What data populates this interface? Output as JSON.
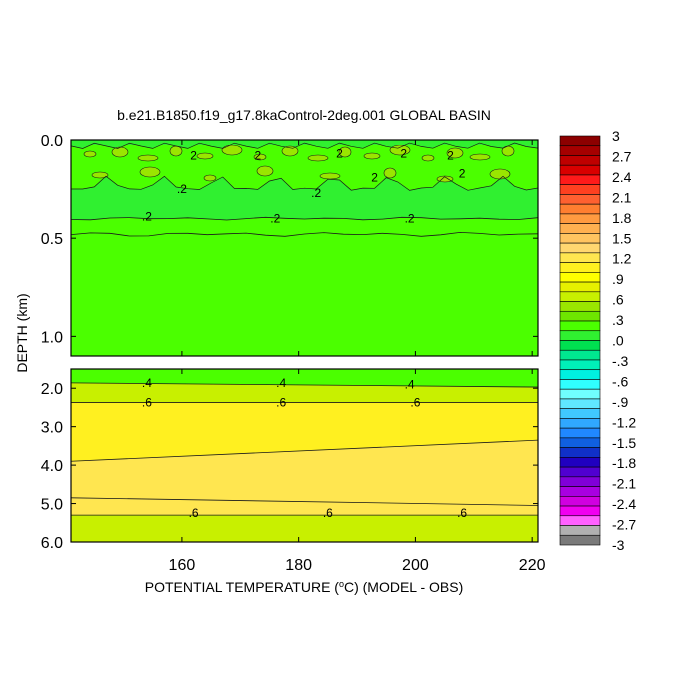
{
  "chart_data": {
    "type": "contour",
    "title": "b.e21.B1850.f19_g17.8kaControl-2deg.001 GLOBAL BASIN",
    "xlabel_main": "POTENTIAL TEMPERATURE (",
    "xlabel_degree": "o",
    "xlabel_tail": "C) (MODEL - OBS)",
    "ylabel": "DEPTH (km)",
    "x_range": [
      141,
      221
    ],
    "x_ticks": [
      {
        "value": 160,
        "label": "160"
      },
      {
        "value": 180,
        "label": "180"
      },
      {
        "value": 200,
        "label": "200"
      },
      {
        "value": 220,
        "label": "220"
      }
    ],
    "upper_panel": {
      "y_range": [
        0.0,
        1.1
      ],
      "y_ticks": [
        {
          "value": 0.0,
          "label": "0.0"
        },
        {
          "value": 0.5,
          "label": "0.5"
        },
        {
          "value": 1.0,
          "label": "1.0"
        }
      ],
      "contour_labels": [
        {
          "x": 162,
          "y": 0.08,
          "text": "2"
        },
        {
          "x": 173,
          "y": 0.08,
          "text": "2"
        },
        {
          "x": 187,
          "y": 0.07,
          "text": "2"
        },
        {
          "x": 198,
          "y": 0.07,
          "text": "2"
        },
        {
          "x": 206,
          "y": 0.08,
          "text": "2"
        },
        {
          "x": 193,
          "y": 0.19,
          "text": "2"
        },
        {
          "x": 208,
          "y": 0.17,
          "text": "2"
        },
        {
          "x": 160,
          "y": 0.25,
          "text": ".2"
        },
        {
          "x": 183,
          "y": 0.27,
          "text": ".2"
        },
        {
          "x": 154,
          "y": 0.39,
          "text": ".2"
        },
        {
          "x": 176,
          "y": 0.4,
          "text": ".2"
        },
        {
          "x": 199,
          "y": 0.4,
          "text": ".2"
        }
      ]
    },
    "lower_panel": {
      "y_range": [
        1.5,
        6.0
      ],
      "y_ticks": [
        {
          "value": 2.0,
          "label": "2.0"
        },
        {
          "value": 3.0,
          "label": "3.0"
        },
        {
          "value": 4.0,
          "label": "4.0"
        },
        {
          "value": 5.0,
          "label": "5.0"
        },
        {
          "value": 6.0,
          "label": "6.0"
        }
      ],
      "contour_labels": [
        {
          "x": 154,
          "y": 1.86,
          "text": ".4"
        },
        {
          "x": 177,
          "y": 1.86,
          "text": ".4"
        },
        {
          "x": 199,
          "y": 1.9,
          "text": ".4"
        },
        {
          "x": 154,
          "y": 2.37,
          "text": ".6"
        },
        {
          "x": 177,
          "y": 2.37,
          "text": ".6"
        },
        {
          "x": 200,
          "y": 2.37,
          "text": ".6"
        },
        {
          "x": 162,
          "y": 5.24,
          "text": ".6"
        },
        {
          "x": 185,
          "y": 5.24,
          "text": ".6"
        },
        {
          "x": 208,
          "y": 5.24,
          "text": ".6"
        }
      ]
    },
    "colorbar": {
      "range": [
        -3,
        3
      ],
      "labels": [
        "3",
        "2.7",
        "2.4",
        "2.1",
        "1.8",
        "1.5",
        "1.2",
        ".9",
        ".6",
        ".3",
        ".0",
        "-.3",
        "-.6",
        "-.9",
        "-1.2",
        "-1.5",
        "-1.8",
        "-2.1",
        "-2.4",
        "-2.7",
        "-3"
      ],
      "colors_top_to_bottom": [
        "#8c0000",
        "#a50000",
        "#bf0000",
        "#d90000",
        "#ff1a1a",
        "#ff4020",
        "#ff6030",
        "#ff7e30",
        "#ff9a40",
        "#ffb050",
        "#ffc460",
        "#ffd770",
        "#ffe650",
        "#fff020",
        "#ffff00",
        "#e6f000",
        "#c8f000",
        "#9ae600",
        "#6ee600",
        "#4bff00",
        "#30f030",
        "#00e050",
        "#00e890",
        "#00f0b8",
        "#00f0e0",
        "#30ffff",
        "#70ffff",
        "#60e8ff",
        "#40c8ff",
        "#30a8ff",
        "#2088ff",
        "#1060e0",
        "#1030c8",
        "#2000c0",
        "#5000d0",
        "#8000d8",
        "#a800e0",
        "#d000e0",
        "#f000f0",
        "#ff60ff",
        "#b0b0b0",
        "#7a7a7a"
      ]
    },
    "colors": {
      "surface_band": "#30f030",
      "upper_field": "#4bff00",
      "lower_top_band": "#4bff00",
      "lower_transition": "#c8f000",
      "lower_field": "#fff020",
      "lower_deep": "#ffe650",
      "bottom_band": "#c8f000",
      "patch": "#9ae600"
    }
  }
}
